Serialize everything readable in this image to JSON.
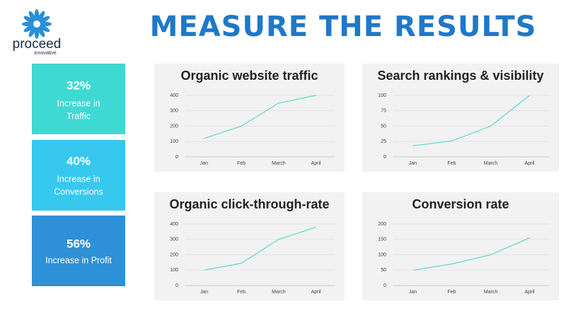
{
  "logo": {
    "name": "proceed",
    "tagline": "innovative"
  },
  "title": "MEASURE THE RESULTS",
  "stats": [
    {
      "value": "32%",
      "lines": [
        "Increase in",
        "Traffic"
      ]
    },
    {
      "value": "40%",
      "lines": [
        "Increase in",
        "Conversions"
      ]
    },
    {
      "value": "56%",
      "lines": [
        "Increase in Profit"
      ]
    }
  ],
  "chart_data": [
    {
      "type": "line",
      "title": "Organic website traffic",
      "categories": [
        "Jan",
        "Feb",
        "March",
        "April"
      ],
      "values": [
        120,
        200,
        350,
        400
      ],
      "color": "#5fd6d0",
      "ylim": [
        0,
        400
      ],
      "yticks": [
        0,
        100,
        200,
        300,
        400
      ],
      "grid": true
    },
    {
      "type": "line",
      "title": "Search rankings & visibility",
      "categories": [
        "Jan",
        "Feb",
        "March",
        "April"
      ],
      "values": [
        18,
        26,
        50,
        100
      ],
      "color": "#5fd6d0",
      "ylim": [
        0,
        100
      ],
      "yticks": [
        0,
        25,
        50,
        75,
        100
      ],
      "grid": true
    },
    {
      "type": "line",
      "title": "Organic click-through-rate",
      "categories": [
        "Jan",
        "Feb",
        "March",
        "April"
      ],
      "values": [
        100,
        145,
        300,
        380
      ],
      "color": "#5fd6d0",
      "ylim": [
        0,
        400
      ],
      "yticks": [
        0,
        100,
        200,
        300,
        400
      ],
      "grid": true
    },
    {
      "type": "line",
      "title": "Conversion rate",
      "categories": [
        "Jan",
        "Feb",
        "March",
        "April"
      ],
      "values": [
        50,
        70,
        100,
        155
      ],
      "color": "#5fd6d0",
      "ylim": [
        0,
        200
      ],
      "yticks": [
        0,
        50,
        100,
        150,
        200
      ],
      "grid": true
    }
  ]
}
